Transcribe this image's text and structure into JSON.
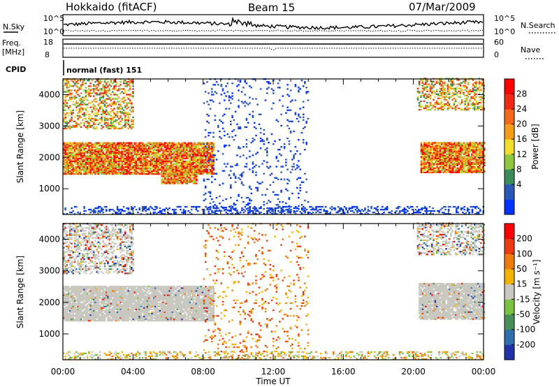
{
  "header": {
    "station": "Hokkaido (fitACF)",
    "beam": "Beam 15",
    "date": "07/Mar/2009"
  },
  "top_panels": {
    "nsky_label": "N.Sky",
    "nsky_ticks": [
      "10^5",
      "10^0"
    ],
    "nsearch_label": "N.Search",
    "freq_label_line1": "Freq.",
    "freq_label_line2": "[MHz]",
    "freq_ticks": [
      "18",
      "8"
    ],
    "nave_label": "Nave",
    "nave_ticks": [
      "60",
      "0"
    ],
    "cpid_label": "CPID",
    "cpid_text": "normal (fast) 151"
  },
  "chart_data": [
    {
      "type": "heatmap",
      "name": "power",
      "xlabel": "",
      "ylabel": "Slant Range [km]",
      "x_ticks": [
        "00:00",
        "04:00",
        "08:00",
        "12:00",
        "16:00",
        "20:00",
        "00:00"
      ],
      "y_ticks": [
        "4000",
        "3000",
        "2000",
        "1000"
      ],
      "xlim_hours": [
        0,
        24
      ],
      "ylim_km": [
        180,
        4500
      ],
      "colorbar_label": "Power [dB]",
      "colorbar_ticks": [
        "28",
        "24",
        "20",
        "16",
        "12",
        "8",
        "4"
      ],
      "colorbar_colors": [
        "#0033ff",
        "#2a57b8",
        "#3b8c5a",
        "#8ec63f",
        "#f2dc2e",
        "#f59d1a",
        "#f26a1a",
        "#ee2a12",
        "#ff0000"
      ],
      "echo_regions": [
        {
          "t0": 0.0,
          "t1": 8.6,
          "r0": 1450,
          "r1": 2450,
          "level": "strong"
        },
        {
          "t0": 5.6,
          "t1": 7.6,
          "r0": 1150,
          "r1": 1700,
          "level": "strong"
        },
        {
          "t0": 20.4,
          "t1": 24.0,
          "r0": 1500,
          "r1": 2450,
          "level": "strong"
        },
        {
          "t0": 0.0,
          "t1": 4.0,
          "r0": 2900,
          "r1": 4500,
          "level": "patchy"
        },
        {
          "t0": 20.2,
          "t1": 24.0,
          "r0": 3500,
          "r1": 4500,
          "level": "patchy"
        },
        {
          "t0": 8.0,
          "t1": 14.0,
          "r0": 200,
          "r1": 4500,
          "level": "sparse"
        },
        {
          "t0": 0.0,
          "t1": 24.0,
          "r0": 180,
          "r1": 420,
          "level": "ground"
        }
      ]
    },
    {
      "type": "heatmap",
      "name": "velocity",
      "xlabel": "Time UT",
      "ylabel": "Slant Range [km]",
      "x_ticks": [
        "00:00",
        "04:00",
        "08:00",
        "12:00",
        "16:00",
        "20:00",
        "00:00"
      ],
      "y_ticks": [
        "4000",
        "3000",
        "2000",
        "1000"
      ],
      "xlim_hours": [
        0,
        24
      ],
      "ylim_km": [
        180,
        4500
      ],
      "colorbar_label": "Velocity [m s⁻¹]",
      "colorbar_ticks": [
        "200",
        "100",
        "50",
        "15",
        "-15",
        "-50",
        "-100",
        "-200"
      ],
      "colorbar_colors": [
        "#2233aa",
        "#2f6fb0",
        "#4a8f5a",
        "#7cc242",
        "#c8c8c0",
        "#f2b200",
        "#f07a10",
        "#ea3a10",
        "#ff0000"
      ],
      "echo_regions": [
        {
          "t0": 0.0,
          "t1": 8.6,
          "r0": 1400,
          "r1": 2500,
          "level": "ground_scatter"
        },
        {
          "t0": 20.3,
          "t1": 24.0,
          "r0": 1450,
          "r1": 2600,
          "level": "ground_scatter"
        },
        {
          "t0": 0.0,
          "t1": 4.0,
          "r0": 2900,
          "r1": 4500,
          "level": "patchy"
        },
        {
          "t0": 20.2,
          "t1": 24.0,
          "r0": 3500,
          "r1": 4500,
          "level": "patchy"
        },
        {
          "t0": 8.0,
          "t1": 14.0,
          "r0": 200,
          "r1": 4500,
          "level": "sparse"
        },
        {
          "t0": 0.0,
          "t1": 24.0,
          "r0": 180,
          "r1": 420,
          "level": "near"
        }
      ]
    }
  ]
}
